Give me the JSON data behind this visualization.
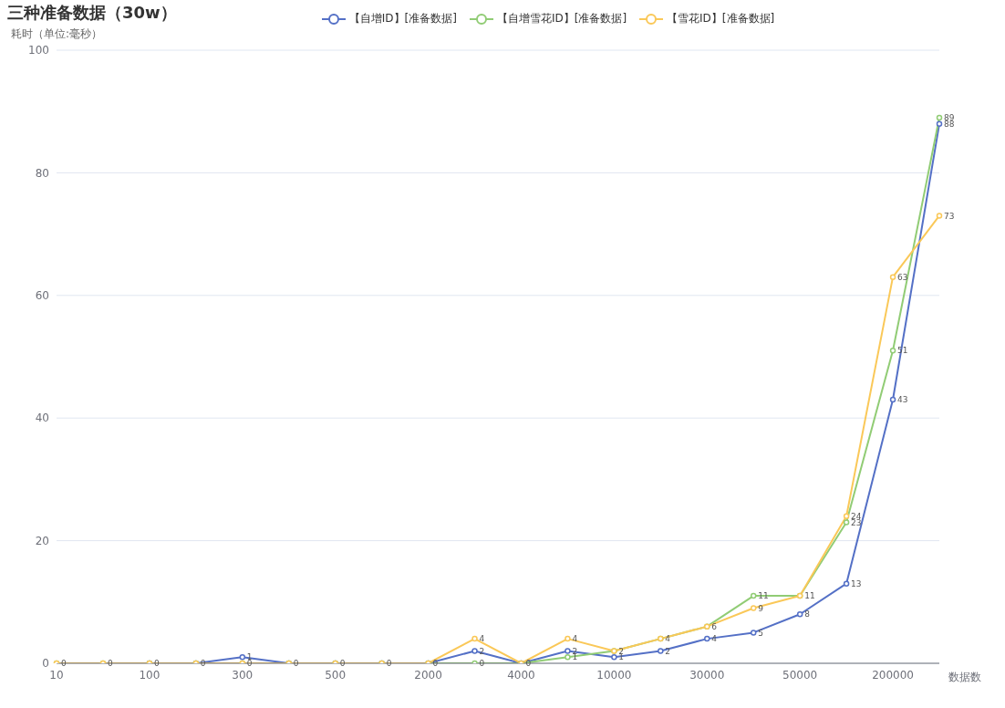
{
  "chart_data": {
    "type": "line",
    "title": "三种准备数据（30w）",
    "ylabel": "耗时（单位:毫秒）",
    "xlabel": "数据数",
    "categories": [
      "10",
      null,
      "100",
      null,
      "300",
      null,
      "500",
      null,
      "2000",
      null,
      "4000",
      null,
      "10000",
      null,
      "30000",
      null,
      "50000",
      null,
      "200000",
      null
    ],
    "series": [
      {
        "name": "【自增ID】[准备数据]",
        "color": "#5470c6",
        "values": [
          null,
          null,
          0,
          0,
          1,
          0,
          0,
          0,
          0,
          2,
          0,
          2,
          1,
          2,
          4,
          5,
          8,
          13,
          43,
          88
        ],
        "value_labels": [
          null,
          null,
          "0",
          "0",
          "1",
          "0",
          "0",
          "0",
          "0",
          "2",
          "0",
          "2",
          "1",
          "2",
          "4",
          "5",
          "8",
          "13",
          "43",
          "88"
        ]
      },
      {
        "name": "【自增雪花ID】[准备数据]",
        "color": "#91cc75",
        "values": [
          0,
          0,
          0,
          0,
          0,
          0,
          0,
          0,
          0,
          0,
          0,
          1,
          2,
          4,
          6,
          11,
          11,
          23,
          51,
          89
        ],
        "value_labels": [
          null,
          null,
          null,
          null,
          "0",
          null,
          null,
          null,
          null,
          "0",
          null,
          "1",
          "2",
          "4",
          "6",
          "11",
          "11",
          "23",
          "51",
          "89"
        ]
      },
      {
        "name": "【雪花ID】[准备数据]",
        "color": "#fac858",
        "values": [
          0,
          0,
          0,
          0,
          0,
          0,
          0,
          0,
          0,
          4,
          0,
          4,
          2,
          4,
          6,
          9,
          11,
          24,
          63,
          73
        ],
        "value_labels": [
          "0",
          "0",
          null,
          null,
          null,
          null,
          null,
          null,
          null,
          "4",
          null,
          "4",
          null,
          null,
          null,
          "9",
          null,
          "24",
          "63",
          "73"
        ]
      }
    ],
    "ylim": [
      0,
      100
    ],
    "yticks": [
      0,
      20,
      40,
      60,
      80,
      100
    ],
    "grid": "y",
    "legend": "top",
    "marker": "circle",
    "line_style": "solid"
  }
}
